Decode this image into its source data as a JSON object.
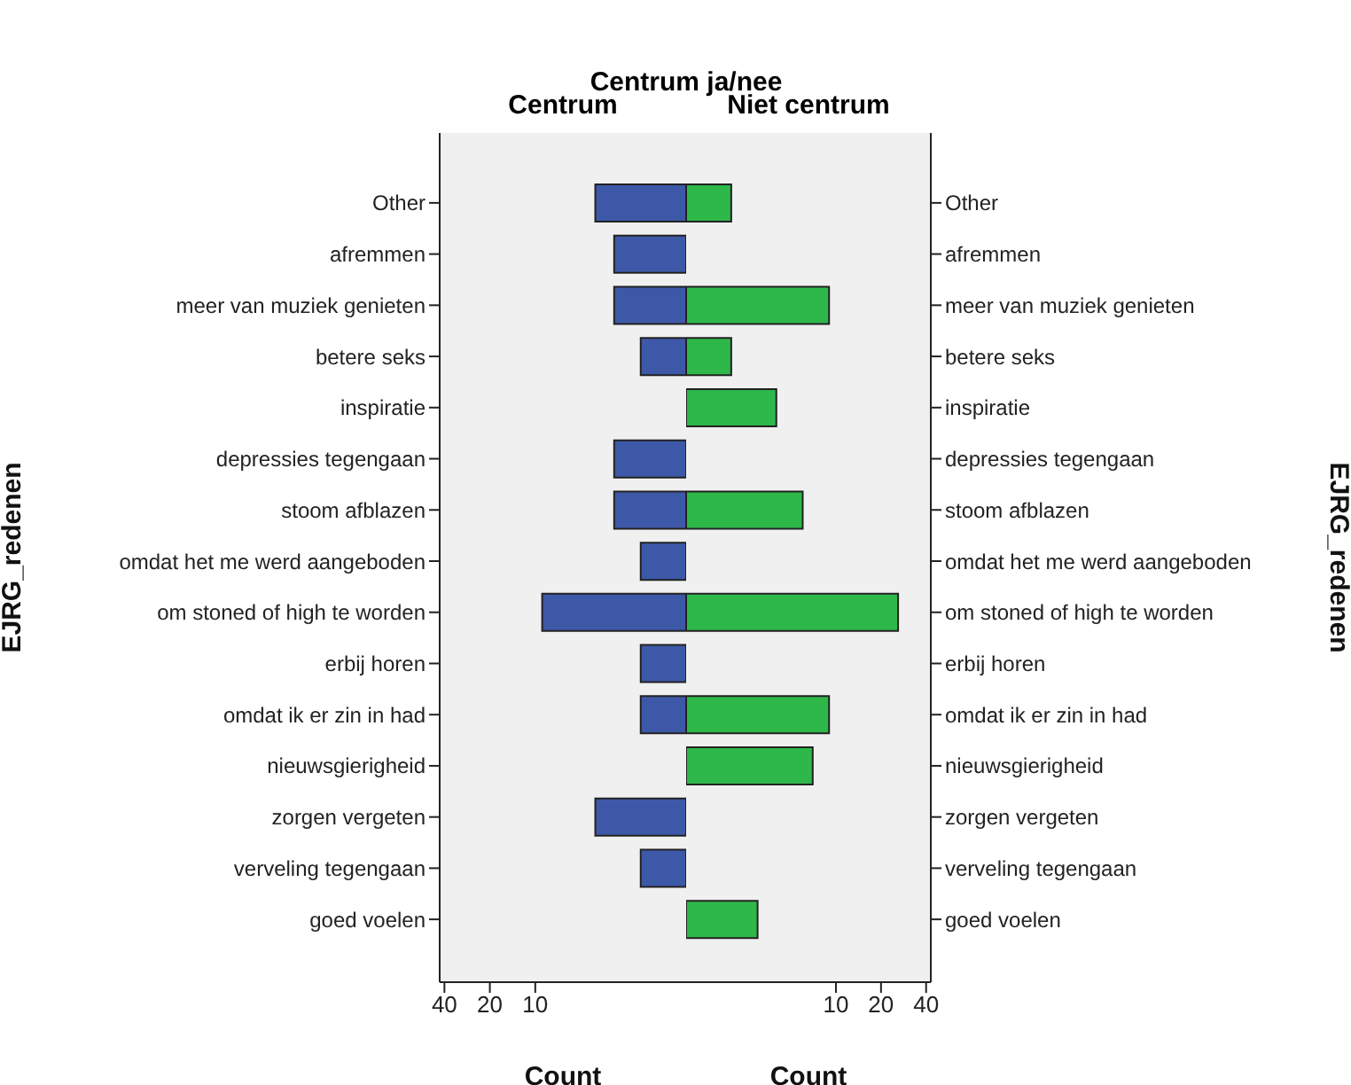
{
  "chart_data": [
    {
      "type": "bar",
      "orientation": "horizontal",
      "title": "Centrum ja/nee",
      "subtitle": "Centrum",
      "xlabel": "Count",
      "ylabel": "EJRG_redenen",
      "log": "x",
      "xlim": [
        43,
        1
      ],
      "xticks": [
        40,
        20,
        10
      ],
      "color": "#3e58a8",
      "categories": [
        "Other",
        "afremmen",
        "meer van muziek genieten",
        "betere seks",
        "inspiratie",
        "depressies tegengaan",
        "stoom afblazen",
        "omdat het me werd aangeboden",
        "om stoned of high te worden",
        "erbij horen",
        "omdat ik er zin in had",
        "nieuwsgierigheid",
        "zorgen vergeten",
        "verveling tegengaan",
        "goed voelen"
      ],
      "values": [
        4,
        3,
        3,
        2,
        null,
        3,
        3,
        2,
        9,
        2,
        2,
        null,
        4,
        2,
        null
      ]
    },
    {
      "type": "bar",
      "orientation": "horizontal",
      "subtitle": "Niet centrum",
      "xlabel": "Count",
      "ylabel": "EJRG_redenen",
      "log": "x",
      "xlim": [
        1,
        43
      ],
      "xticks": [
        10,
        20,
        40
      ],
      "color": "#2eb84a",
      "categories": [
        "Other",
        "afremmen",
        "meer van muziek genieten",
        "betere seks",
        "inspiratie",
        "depressies tegengaan",
        "stoom afblazen",
        "omdat het me werd aangeboden",
        "om stoned of high te worden",
        "erbij horen",
        "omdat ik er zin in had",
        "nieuwsgierigheid",
        "zorgen vergeten",
        "verveling tegengaan",
        "goed voelen"
      ],
      "values": [
        2,
        null,
        9,
        2,
        4,
        null,
        6,
        null,
        26,
        null,
        9,
        7,
        null,
        null,
        3
      ]
    }
  ]
}
